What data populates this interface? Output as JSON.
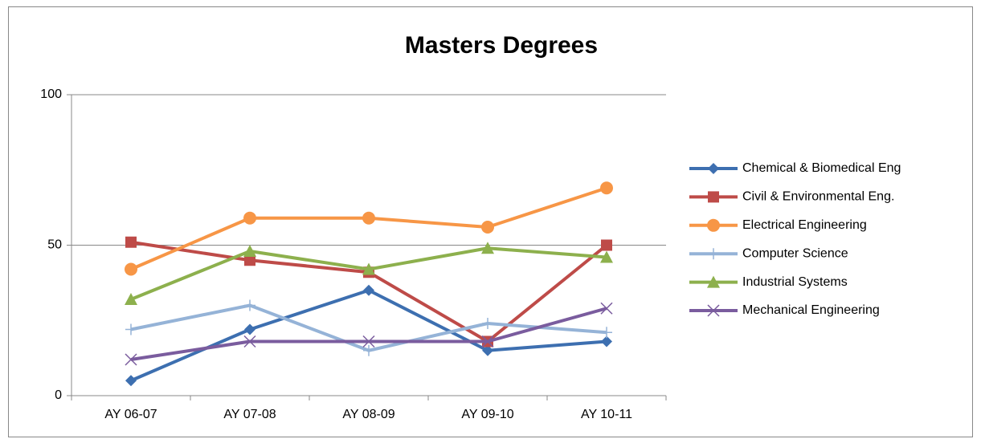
{
  "chart_data": {
    "type": "line",
    "title": "Masters Degrees",
    "categories": [
      "AY 06-07",
      "AY 07-08",
      "AY 08-09",
      "AY 09-10",
      "AY 10-11"
    ],
    "series": [
      {
        "name": "Chemical & Biomedical Eng",
        "color": "#3d6fb0",
        "marker": "diamond",
        "values": [
          5,
          22,
          35,
          15,
          18
        ]
      },
      {
        "name": "Civil & Environmental Eng.",
        "color": "#be4b48",
        "marker": "square",
        "values": [
          51,
          45,
          41,
          18,
          50
        ]
      },
      {
        "name": "Electrical Engineering",
        "color": "#f79646",
        "marker": "circle",
        "values": [
          42,
          59,
          59,
          56,
          69
        ]
      },
      {
        "name": "Computer Science",
        "color": "#95b3d7",
        "marker": "plus",
        "values": [
          22,
          30,
          15,
          24,
          21
        ]
      },
      {
        "name": "Industrial Systems",
        "color": "#8db04d",
        "marker": "triangle",
        "values": [
          32,
          48,
          42,
          49,
          46
        ]
      },
      {
        "name": "Mechanical Engineering",
        "color": "#7a5c9e",
        "marker": "x",
        "values": [
          12,
          18,
          18,
          18,
          29
        ]
      }
    ],
    "ylim": [
      0,
      100
    ],
    "yticks": [
      0,
      50,
      100
    ],
    "grid": true,
    "legend": "right"
  }
}
